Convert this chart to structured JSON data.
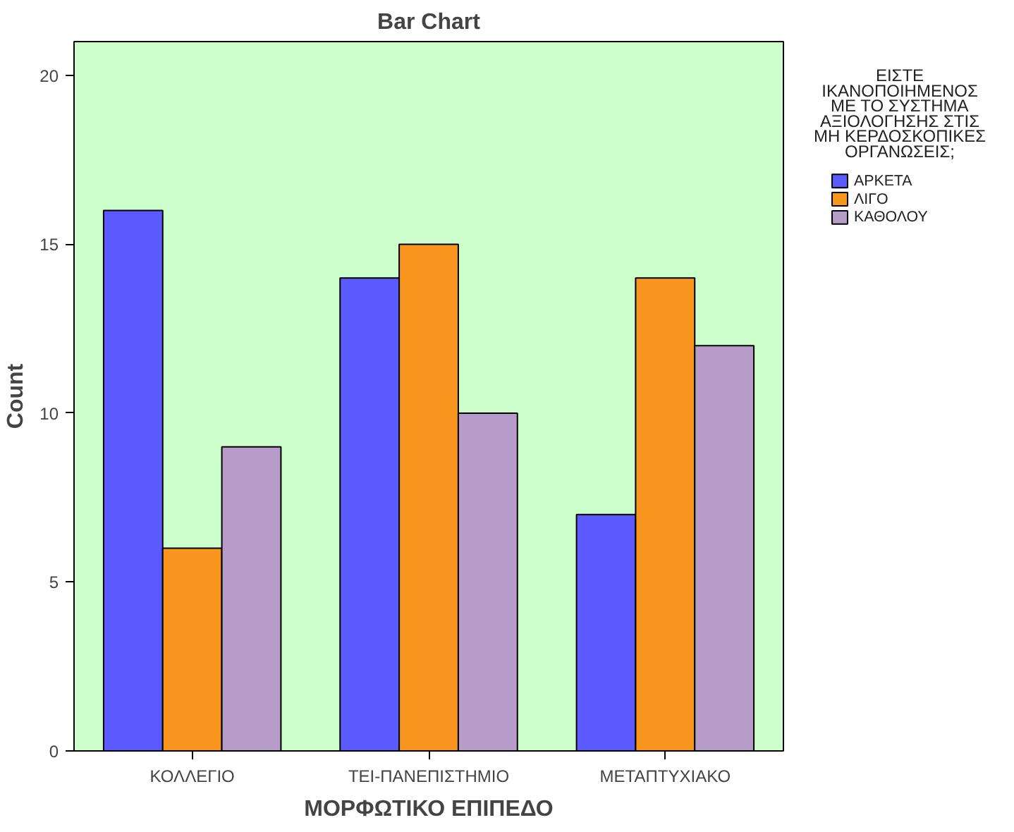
{
  "chart_data": {
    "type": "bar",
    "title": "Bar Chart",
    "xlabel": "ΜΟΡΦΩΤΙΚΟ ΕΠΙΠΕΔΟ",
    "ylabel": "Count",
    "legend_title": "ΕΙΣΤΕ ΙΚΑΝΟΠΟΙΗΜΕΝΟΣ ΜΕ ΤΟ ΣΥΣΤΗΜΑ ΑΞΙΟΛΟΓΗΣΗΣ ΣΤΙΣ ΜΗ ΚΕΡΔΟΣΚΟΠΙΚΕΣ ΟΡΓΑΝΩΣΕΙΣ;",
    "categories": [
      "ΚΟΛΛΕΓΙΟ",
      "ΤΕΙ-ΠΑΝΕΠΙΣΤΗΜΙΟ",
      "ΜΕΤΑΠΤΥΧΙΑΚΟ"
    ],
    "series": [
      {
        "name": "ΑΡΚΕΤΑ",
        "color": "#5a5aff",
        "values": [
          16,
          14,
          7
        ]
      },
      {
        "name": "ΛΙΓΟ",
        "color": "#f8961e",
        "values": [
          6,
          15,
          14
        ]
      },
      {
        "name": "ΚΑΘΟΛΟΥ",
        "color": "#b79cc9",
        "values": [
          9,
          10,
          12
        ]
      }
    ],
    "ylim": [
      0,
      21
    ],
    "yticks": [
      0,
      5,
      10,
      15,
      20
    ],
    "grid": false,
    "legend": "right"
  }
}
